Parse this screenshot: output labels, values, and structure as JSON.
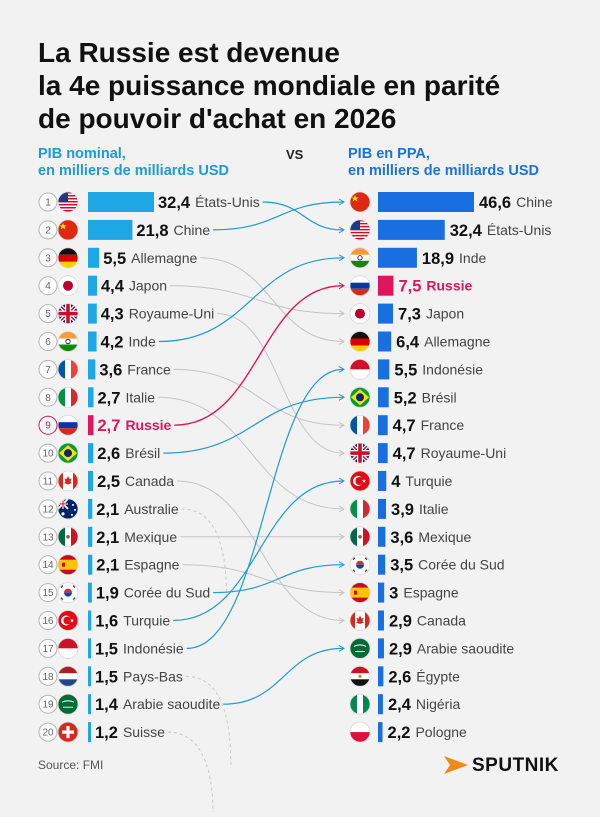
{
  "title": [
    "La Russie est devenue",
    "la 4e puissance mondiale en parité",
    "de pouvoir d'achat en 2026"
  ],
  "left_header": [
    "PIB nominal,",
    "en milliers de milliards USD"
  ],
  "right_header": [
    "PIB en PPA,",
    "en milliers de milliards USD"
  ],
  "vs_label": "VS",
  "source": "Source: FMI",
  "brand": "SPUTNIK",
  "colors": {
    "nominal_bar": "#1ea7e4",
    "ppp_bar": "#1a6fe0",
    "highlight": "#e0155f",
    "text": "#222222",
    "label": "#444444"
  },
  "chart_data": [
    {
      "type": "bar",
      "orientation": "horizontal",
      "title": "PIB nominal, en milliers de milliards USD",
      "highlight": "Russie",
      "items": [
        {
          "rank": 1,
          "country": "États-Unis",
          "value": 32.4,
          "value_label": "32,4",
          "flag": "us-flag"
        },
        {
          "rank": 2,
          "country": "Chine",
          "value": 21.8,
          "value_label": "21,8",
          "flag": "china-flag"
        },
        {
          "rank": 3,
          "country": "Allemagne",
          "value": 5.5,
          "value_label": "5,5",
          "flag": "germany-flag"
        },
        {
          "rank": 4,
          "country": "Japon",
          "value": 4.4,
          "value_label": "4,4",
          "flag": "japan-flag"
        },
        {
          "rank": 5,
          "country": "Royaume-Uni",
          "value": 4.3,
          "value_label": "4,3",
          "flag": "uk-flag"
        },
        {
          "rank": 6,
          "country": "Inde",
          "value": 4.2,
          "value_label": "4,2",
          "flag": "india-flag"
        },
        {
          "rank": 7,
          "country": "France",
          "value": 3.6,
          "value_label": "3,6",
          "flag": "france-flag"
        },
        {
          "rank": 8,
          "country": "Italie",
          "value": 2.7,
          "value_label": "2,7",
          "flag": "italy-flag"
        },
        {
          "rank": 9,
          "country": "Russie",
          "value": 2.7,
          "value_label": "2,7",
          "flag": "russia-flag"
        },
        {
          "rank": 10,
          "country": "Brésil",
          "value": 2.6,
          "value_label": "2,6",
          "flag": "brazil-flag"
        },
        {
          "rank": 11,
          "country": "Canada",
          "value": 2.5,
          "value_label": "2,5",
          "flag": "canada-flag"
        },
        {
          "rank": 12,
          "country": "Australie",
          "value": 2.1,
          "value_label": "2,1",
          "flag": "australia-flag"
        },
        {
          "rank": 13,
          "country": "Mexique",
          "value": 2.1,
          "value_label": "2,1",
          "flag": "mexico-flag"
        },
        {
          "rank": 14,
          "country": "Espagne",
          "value": 2.1,
          "value_label": "2,1",
          "flag": "spain-flag"
        },
        {
          "rank": 15,
          "country": "Corée du Sud",
          "value": 1.9,
          "value_label": "1,9",
          "flag": "south-korea-flag"
        },
        {
          "rank": 16,
          "country": "Turquie",
          "value": 1.6,
          "value_label": "1,6",
          "flag": "turkey-flag"
        },
        {
          "rank": 17,
          "country": "Indonésie",
          "value": 1.5,
          "value_label": "1,5",
          "flag": "indonesia-flag"
        },
        {
          "rank": 18,
          "country": "Pays-Bas",
          "value": 1.5,
          "value_label": "1,5",
          "flag": "netherlands-flag"
        },
        {
          "rank": 19,
          "country": "Arabie saoudite",
          "value": 1.4,
          "value_label": "1,4",
          "flag": "saudi-arabia-flag"
        },
        {
          "rank": 20,
          "country": "Suisse",
          "value": 1.2,
          "value_label": "1,2",
          "flag": "switzerland-flag"
        }
      ]
    },
    {
      "type": "bar",
      "orientation": "horizontal",
      "title": "PIB en PPA, en milliers de milliards USD",
      "highlight": "Russie",
      "items": [
        {
          "rank": 1,
          "country": "Chine",
          "value": 46.6,
          "value_label": "46,6",
          "flag": "china-flag"
        },
        {
          "rank": 2,
          "country": "États-Unis",
          "value": 32.4,
          "value_label": "32,4",
          "flag": "us-flag"
        },
        {
          "rank": 3,
          "country": "Inde",
          "value": 18.9,
          "value_label": "18,9",
          "flag": "india-flag"
        },
        {
          "rank": 4,
          "country": "Russie",
          "value": 7.5,
          "value_label": "7,5",
          "flag": "russia-flag"
        },
        {
          "rank": 5,
          "country": "Japon",
          "value": 7.3,
          "value_label": "7,3",
          "flag": "japan-flag"
        },
        {
          "rank": 6,
          "country": "Allemagne",
          "value": 6.4,
          "value_label": "6,4",
          "flag": "germany-flag"
        },
        {
          "rank": 7,
          "country": "Indonésie",
          "value": 5.5,
          "value_label": "5,5",
          "flag": "indonesia-flag"
        },
        {
          "rank": 8,
          "country": "Brésil",
          "value": 5.2,
          "value_label": "5,2",
          "flag": "brazil-flag"
        },
        {
          "rank": 9,
          "country": "France",
          "value": 4.7,
          "value_label": "4,7",
          "flag": "france-flag"
        },
        {
          "rank": 10,
          "country": "Royaume-Uni",
          "value": 4.7,
          "value_label": "4,7",
          "flag": "uk-flag"
        },
        {
          "rank": 11,
          "country": "Turquie",
          "value": 4,
          "value_label": "4",
          "flag": "turkey-flag"
        },
        {
          "rank": 12,
          "country": "Italie",
          "value": 3.9,
          "value_label": "3,9",
          "flag": "italy-flag"
        },
        {
          "rank": 13,
          "country": "Mexique",
          "value": 3.6,
          "value_label": "3,6",
          "flag": "mexico-flag"
        },
        {
          "rank": 14,
          "country": "Corée du Sud",
          "value": 3.5,
          "value_label": "3,5",
          "flag": "south-korea-flag"
        },
        {
          "rank": 15,
          "country": "Espagne",
          "value": 3,
          "value_label": "3",
          "flag": "spain-flag"
        },
        {
          "rank": 16,
          "country": "Canada",
          "value": 2.9,
          "value_label": "2,9",
          "flag": "canada-flag"
        },
        {
          "rank": 17,
          "country": "Arabie saoudite",
          "value": 2.9,
          "value_label": "2,9",
          "flag": "saudi-arabia-flag"
        },
        {
          "rank": 18,
          "country": "Égypte",
          "value": 2.6,
          "value_label": "2,6",
          "flag": "egypt-flag"
        },
        {
          "rank": 19,
          "country": "Nigéria",
          "value": 2.4,
          "value_label": "2,4",
          "flag": "nigeria-flag"
        },
        {
          "rank": 20,
          "country": "Pologne",
          "value": 2.2,
          "value_label": "2,2",
          "flag": "poland-flag"
        }
      ]
    }
  ]
}
